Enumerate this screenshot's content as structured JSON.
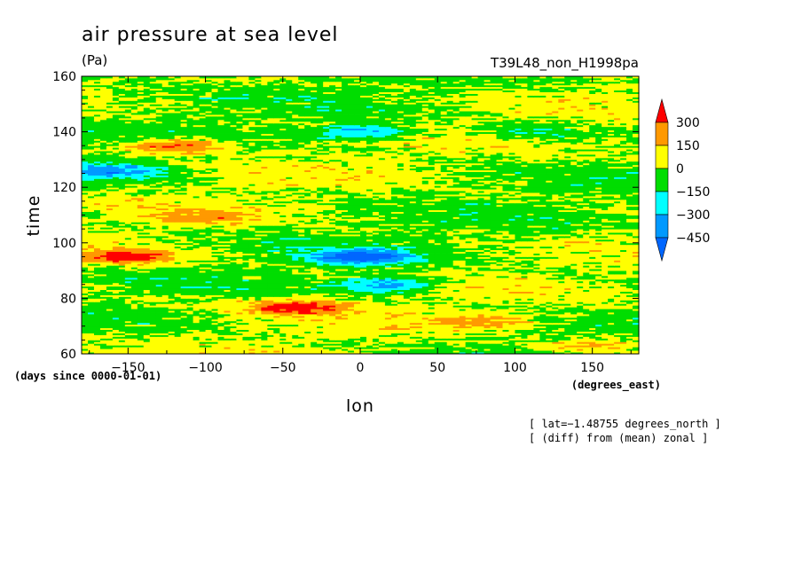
{
  "chart_data": {
    "type": "heatmap",
    "title": "air pressure at sea level",
    "units": "(Pa)",
    "run_label": "T39L48_non_H1998pa",
    "xlabel": "lon",
    "ylabel": "time",
    "x_units": "(degrees_east)",
    "y_units": "(days since 0000-01-01)",
    "xlim": [
      -180,
      180
    ],
    "ylim": [
      60,
      160
    ],
    "x_ticks": [
      -150,
      -100,
      -50,
      0,
      50,
      100,
      150
    ],
    "y_ticks": [
      60,
      80,
      100,
      120,
      140,
      160
    ],
    "x_tick_labels": [
      "−150",
      "−100",
      "−50",
      "0",
      "50",
      "100",
      "150"
    ],
    "y_tick_labels": [
      "60",
      "80",
      "100",
      "120",
      "140",
      "160"
    ],
    "colorbar": {
      "levels": [
        300,
        150,
        0,
        -150,
        -300,
        -450
      ],
      "labels": [
        "300",
        "150",
        "0",
        "−150",
        "−300",
        "−450"
      ],
      "colors": [
        "#ff0000",
        "#ff9900",
        "#ffff00",
        "#00dd00",
        "#00ffff",
        "#0099ff",
        "#0066ff"
      ]
    },
    "annotations": [
      "[ lat=−1.48755 degrees_north ]",
      "[ (diff) from (mean) zonal ]"
    ],
    "features": [
      {
        "lon": -150,
        "time": 95,
        "value": 300
      },
      {
        "lon": -120,
        "time": 135,
        "value": 300
      },
      {
        "lon": -40,
        "time": 77,
        "value": 300
      },
      {
        "lon": -100,
        "time": 109,
        "value": 150
      },
      {
        "lon": 0,
        "time": 95,
        "value": -450
      },
      {
        "lon": 0,
        "time": 140,
        "value": -300
      },
      {
        "lon": 20,
        "time": 85,
        "value": -300
      },
      {
        "lon": -160,
        "time": 126,
        "value": -300
      },
      {
        "lon": 110,
        "time": 140,
        "value": -150
      },
      {
        "lon": 150,
        "time": 63,
        "value": 150
      },
      {
        "lon": 80,
        "time": 72,
        "value": 150
      }
    ]
  }
}
